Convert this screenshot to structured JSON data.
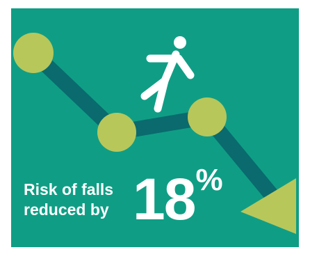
{
  "caption": {
    "line1": "Risk of falls",
    "line2": "reduced by"
  },
  "stat": {
    "value": "18",
    "unit": "%"
  },
  "colors": {
    "background": "#0f9e85",
    "line": "#0a6a6e",
    "dot": "#b8c75a",
    "text": "#ffffff"
  },
  "icons": {
    "figure": "falling-person-icon",
    "arrow": "down-arrow-head-icon"
  }
}
